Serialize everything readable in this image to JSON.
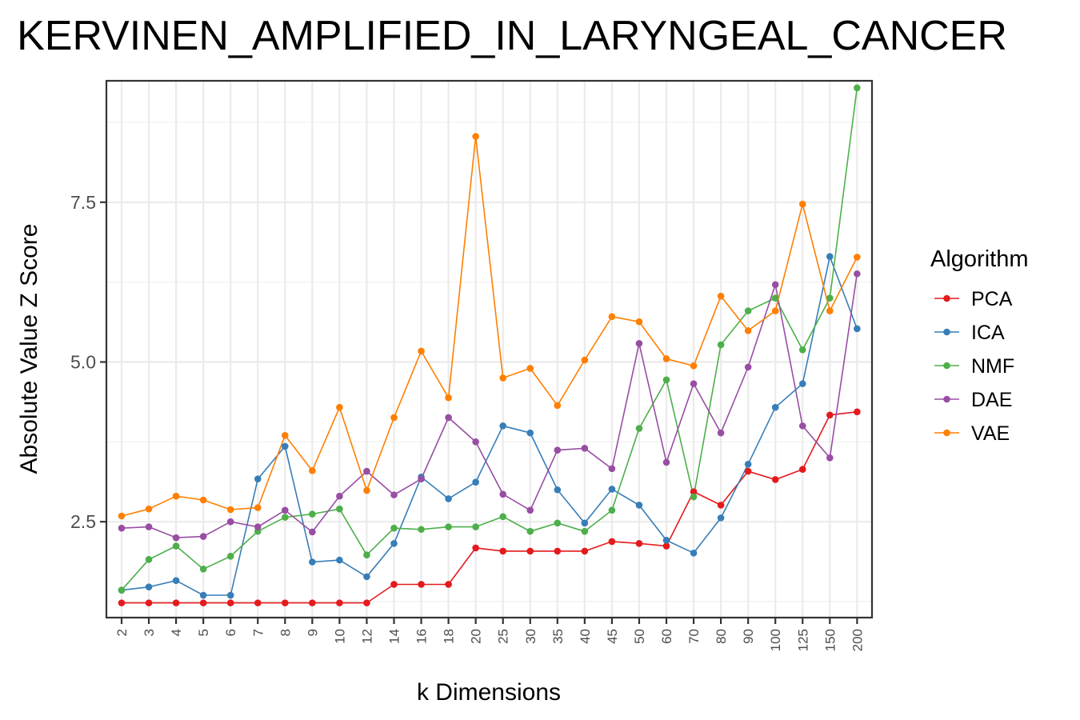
{
  "chart_data": {
    "type": "line",
    "title": "KERVINEN_AMPLIFIED_IN_LARYNGEAL_CANCER",
    "xlabel": "k Dimensions",
    "ylabel": "Absolute Value Z Score",
    "categories": [
      "2",
      "3",
      "4",
      "5",
      "6",
      "7",
      "8",
      "9",
      "10",
      "12",
      "14",
      "16",
      "18",
      "20",
      "25",
      "30",
      "35",
      "40",
      "45",
      "50",
      "60",
      "70",
      "80",
      "90",
      "100",
      "125",
      "150",
      "200"
    ],
    "yticks": [
      {
        "value": 2.5,
        "label": "2.5"
      },
      {
        "value": 5.0,
        "label": "5.0"
      },
      {
        "value": 7.5,
        "label": "7.5"
      }
    ],
    "ylim": [
      1.0,
      9.4
    ],
    "grid": true,
    "legend": {
      "title": "Algorithm",
      "position": "right"
    },
    "series": [
      {
        "name": "PCA",
        "color": "#e41a1c",
        "values": [
          1.23,
          1.23,
          1.23,
          1.23,
          1.23,
          1.23,
          1.23,
          1.23,
          1.23,
          1.23,
          1.52,
          1.52,
          1.52,
          2.09,
          2.04,
          2.04,
          2.04,
          2.04,
          2.19,
          2.16,
          2.12,
          2.97,
          2.76,
          3.29,
          3.16,
          3.32,
          4.17,
          4.22
        ]
      },
      {
        "name": "ICA",
        "color": "#377eb8",
        "values": [
          1.43,
          1.48,
          1.58,
          1.35,
          1.35,
          3.17,
          3.68,
          1.87,
          1.9,
          1.64,
          2.16,
          3.2,
          2.86,
          3.12,
          4.0,
          3.89,
          3.0,
          2.48,
          3.01,
          2.76,
          2.21,
          2.01,
          2.56,
          3.4,
          4.29,
          4.66,
          6.65,
          5.52
        ]
      },
      {
        "name": "NMF",
        "color": "#4daf4a",
        "values": [
          1.43,
          1.91,
          2.12,
          1.76,
          1.96,
          2.35,
          2.57,
          2.62,
          2.7,
          1.98,
          2.4,
          2.38,
          2.42,
          2.42,
          2.58,
          2.35,
          2.48,
          2.35,
          2.68,
          3.96,
          4.72,
          2.89,
          5.27,
          5.8,
          6.0,
          5.19,
          6.0,
          9.29
        ]
      },
      {
        "name": "DAE",
        "color": "#984ea3",
        "values": [
          2.4,
          2.42,
          2.25,
          2.27,
          2.5,
          2.42,
          2.68,
          2.34,
          2.9,
          3.29,
          2.92,
          3.17,
          4.13,
          3.75,
          2.93,
          2.68,
          3.62,
          3.65,
          3.33,
          5.29,
          3.43,
          4.66,
          3.89,
          4.92,
          6.21,
          4.0,
          3.5,
          6.38
        ]
      },
      {
        "name": "VAE",
        "color": "#ff7f00",
        "values": [
          2.59,
          2.7,
          2.9,
          2.84,
          2.69,
          2.72,
          3.85,
          3.3,
          4.29,
          2.99,
          4.13,
          5.17,
          4.44,
          8.53,
          4.75,
          4.9,
          4.32,
          5.03,
          5.71,
          5.63,
          5.05,
          4.94,
          6.03,
          5.49,
          5.8,
          7.47,
          5.8,
          6.64
        ]
      }
    ]
  }
}
